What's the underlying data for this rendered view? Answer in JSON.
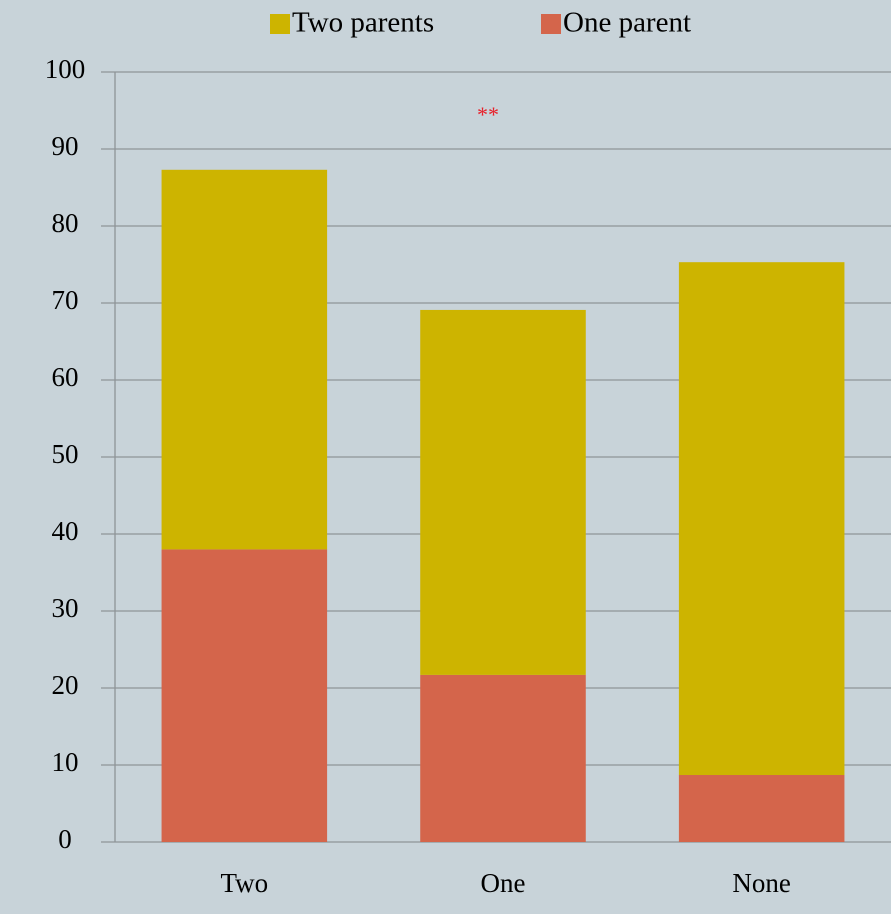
{
  "chart_data": {
    "type": "stacked_bar",
    "categories": [
      "Two",
      "One",
      "None"
    ],
    "series": [
      {
        "name": "One parent",
        "color": "#d4654b",
        "values": [
          38,
          21.7,
          8.7
        ]
      },
      {
        "name": "Two parents",
        "color": "#cdb400",
        "values": [
          49.3,
          47.4,
          66.6
        ]
      }
    ],
    "legend_order": [
      "Two parents",
      "One parent"
    ],
    "annotation": "**",
    "ylim": [
      0,
      100
    ],
    "yticks": [
      0,
      10,
      20,
      30,
      40,
      50,
      60,
      70,
      80,
      90,
      100
    ],
    "grid": true,
    "legend": "top"
  }
}
